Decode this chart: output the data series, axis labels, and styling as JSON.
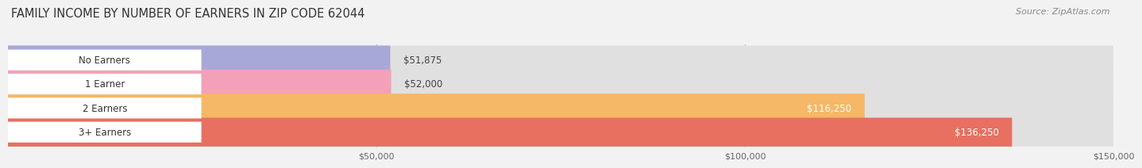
{
  "title": "FAMILY INCOME BY NUMBER OF EARNERS IN ZIP CODE 62044",
  "source": "Source: ZipAtlas.com",
  "categories": [
    "No Earners",
    "1 Earner",
    "2 Earners",
    "3+ Earners"
  ],
  "values": [
    51875,
    52000,
    116250,
    136250
  ],
  "labels": [
    "$51,875",
    "$52,000",
    "$116,250",
    "$136,250"
  ],
  "bar_colors": [
    "#a8a8d8",
    "#f4a0b8",
    "#f5b866",
    "#e87060"
  ],
  "label_colors": [
    "#555555",
    "#555555",
    "#ffffff",
    "#ffffff"
  ],
  "background_color": "#f2f2f2",
  "bar_bg_color": "#e0e0e0",
  "xlim": [
    0,
    150000
  ],
  "xticks": [
    50000,
    100000,
    150000
  ],
  "xtick_labels": [
    "$50,000",
    "$100,000",
    "$150,000"
  ],
  "title_fontsize": 10.5,
  "source_fontsize": 8,
  "bar_label_fontsize": 8.5,
  "category_fontsize": 8.5,
  "tick_fontsize": 8,
  "bar_height": 0.6,
  "fig_width": 14.06,
  "fig_height": 2.33
}
